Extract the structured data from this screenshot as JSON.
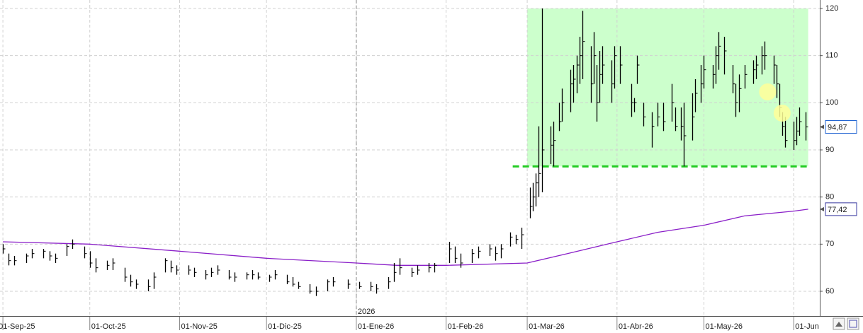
{
  "chart_data": {
    "type": "ohlc",
    "xlim": [
      "2025-08-31",
      "2026-06-10"
    ],
    "ylim": [
      54.75,
      121.8
    ],
    "yticks": [
      60,
      70,
      80,
      90,
      100,
      110,
      120
    ],
    "xticks": [
      {
        "value": "2025-09-01",
        "label": "01-Sep-25"
      },
      {
        "value": "2025-10-01",
        "label": "01-Oct-25"
      },
      {
        "value": "2025-11-01",
        "label": "01-Nov-25"
      },
      {
        "value": "2025-12-01",
        "label": "01-Dic-25"
      },
      {
        "value": "2026-01-01",
        "label": "01-Ene-26"
      },
      {
        "value": "2026-02-01",
        "label": "01-Feb-26"
      },
      {
        "value": "2026-03-01",
        "label": "01-Mar-26"
      },
      {
        "value": "2026-04-01",
        "label": "01-Abr-26"
      },
      {
        "value": "2026-05-01",
        "label": "01-May-26"
      },
      {
        "value": "2026-06-01",
        "label": "01-Jun"
      }
    ],
    "year_marker": {
      "value": "2026-01-01",
      "label": "2026"
    },
    "grid": true,
    "color": "#000000",
    "x": [
      "2025-09-01",
      "2025-09-03",
      "2025-09-05",
      "2025-09-09",
      "2025-09-11",
      "2025-09-15",
      "2025-09-17",
      "2025-09-19",
      "2025-09-23",
      "2025-09-25",
      "2025-09-29",
      "2025-10-01",
      "2025-10-03",
      "2025-10-07",
      "2025-10-09",
      "2025-10-13",
      "2025-10-15",
      "2025-10-17",
      "2025-10-21",
      "2025-10-23",
      "2025-10-27",
      "2025-10-29",
      "2025-10-31",
      "2025-11-04",
      "2025-11-06",
      "2025-11-10",
      "2025-11-12",
      "2025-11-14",
      "2025-11-18",
      "2025-11-20",
      "2025-11-24",
      "2025-11-26",
      "2025-11-28",
      "2025-12-02",
      "2025-12-04",
      "2025-12-08",
      "2025-12-10",
      "2025-12-12",
      "2025-12-16",
      "2025-12-18",
      "2025-12-22",
      "2025-12-24",
      "2025-12-29",
      "2026-01-02",
      "2026-01-06",
      "2026-01-08",
      "2026-01-12",
      "2026-01-14",
      "2026-01-16",
      "2026-01-20",
      "2026-01-22",
      "2026-01-26",
      "2026-01-28",
      "2026-02-02",
      "2026-02-04",
      "2026-02-06",
      "2026-02-10",
      "2026-02-12",
      "2026-02-16",
      "2026-02-18",
      "2026-02-20",
      "2026-02-23",
      "2026-02-25",
      "2026-02-27",
      "2026-03-02",
      "2026-03-03",
      "2026-03-04",
      "2026-03-05",
      "2026-03-06",
      "2026-03-09",
      "2026-03-10",
      "2026-03-12",
      "2026-03-13",
      "2026-03-16",
      "2026-03-17",
      "2026-03-18",
      "2026-03-19",
      "2026-03-20",
      "2026-03-23",
      "2026-03-24",
      "2026-03-25",
      "2026-03-26",
      "2026-03-27",
      "2026-03-30",
      "2026-03-31",
      "2026-04-02",
      "2026-04-06",
      "2026-04-07",
      "2026-04-08",
      "2026-04-10",
      "2026-04-13",
      "2026-04-15",
      "2026-04-17",
      "2026-04-20",
      "2026-04-21",
      "2026-04-23",
      "2026-04-24",
      "2026-04-27",
      "2026-04-28",
      "2026-04-30",
      "2026-05-01",
      "2026-05-04",
      "2026-05-05",
      "2026-05-06",
      "2026-05-08",
      "2026-05-11",
      "2026-05-12",
      "2026-05-13",
      "2026-05-15",
      "2026-05-18",
      "2026-05-19",
      "2026-05-21",
      "2026-05-22",
      "2026-05-25",
      "2026-05-26",
      "2026-05-27",
      "2026-05-28",
      "2026-05-29",
      "2026-06-01",
      "2026-06-02",
      "2026-06-03",
      "2026-06-05"
    ],
    "high": [
      70,
      68,
      67.5,
      68,
      69,
      69,
      68.5,
      68,
      70,
      71,
      69.5,
      68.5,
      67,
      66.5,
      67,
      65,
      63.5,
      62.5,
      62.5,
      64,
      67,
      66.5,
      65.5,
      65.5,
      65,
      64.5,
      65,
      65.5,
      64.5,
      64,
      64,
      64.5,
      64,
      63.5,
      64.5,
      63.5,
      63,
      62,
      61.5,
      61,
      62.5,
      63,
      62.5,
      62,
      62,
      61.5,
      63,
      66,
      67,
      65,
      65.5,
      66,
      66,
      70.5,
      69.5,
      68,
      69,
      69.5,
      70,
      69.5,
      70,
      72.5,
      72,
      73.5,
      82,
      83,
      85,
      95,
      120,
      95,
      96,
      100,
      103,
      107,
      108,
      110,
      114,
      119.5,
      112,
      115,
      108,
      111,
      112,
      109,
      112,
      112,
      104,
      101,
      110,
      100,
      98,
      100,
      100,
      104,
      99,
      99,
      100,
      102,
      105,
      108,
      110,
      108,
      112,
      115,
      114,
      108,
      104,
      106,
      108,
      109,
      110,
      112,
      113,
      110,
      108,
      104,
      98,
      97,
      96,
      97,
      99,
      98
    ],
    "low": [
      68,
      65.5,
      65.5,
      66,
      67,
      67,
      66.5,
      66,
      67.5,
      69,
      67,
      65,
      64,
      64.5,
      64.5,
      62,
      61,
      60.5,
      60,
      60.5,
      64,
      64,
      63.5,
      63.5,
      63,
      62.5,
      63,
      63.5,
      62.5,
      62,
      62.5,
      62.5,
      62.5,
      62,
      62.5,
      61.5,
      61,
      60.5,
      59.5,
      59,
      60,
      61,
      60.5,
      60.5,
      60,
      59.5,
      60.5,
      62,
      63.5,
      63,
      63.5,
      64,
      64,
      66,
      66,
      65,
      66,
      67,
      67.5,
      66.5,
      67,
      69.5,
      70,
      69,
      75.5,
      77,
      78,
      80,
      81,
      87,
      86.5,
      94,
      96,
      98,
      100,
      102,
      104,
      105,
      100,
      104,
      96,
      100,
      104,
      100,
      103,
      104,
      97,
      98,
      104,
      95,
      90.5,
      95,
      94,
      96,
      94,
      92,
      86.5,
      92,
      98,
      100,
      103,
      103,
      104,
      107,
      106,
      102,
      97,
      98,
      103,
      104,
      105,
      106,
      107,
      104,
      101,
      97,
      93,
      90.5,
      90,
      91,
      93,
      92
    ],
    "close": [
      69,
      66.5,
      66.5,
      67.5,
      68,
      68.5,
      67.5,
      67,
      69.5,
      70,
      68,
      66,
      65,
      65.5,
      66,
      63,
      62,
      61.5,
      61,
      63,
      66.5,
      65,
      64.5,
      64.5,
      64,
      63.5,
      64,
      64.5,
      63,
      63,
      63.5,
      63.5,
      63,
      63,
      63.5,
      62,
      61.5,
      61,
      60,
      60,
      62,
      62,
      61.5,
      61,
      61,
      60.5,
      62,
      64,
      65,
      64,
      64.5,
      65,
      65.5,
      69,
      67,
      66,
      68,
      68.5,
      69,
      68,
      69,
      71.5,
      71,
      72,
      78,
      80,
      83,
      85,
      90,
      91,
      92,
      96,
      100,
      104,
      105,
      108,
      110,
      113,
      104,
      110,
      100,
      106,
      108,
      104,
      110,
      108,
      100,
      100,
      108,
      97,
      95,
      97,
      96,
      100,
      95,
      95,
      93,
      97,
      102,
      104,
      107,
      106,
      110,
      112,
      111,
      104,
      100,
      103,
      106,
      107,
      108,
      110,
      110,
      108,
      104,
      99,
      95,
      92,
      92,
      94,
      96,
      94.87
    ],
    "moving_average": {
      "color": "#8a1fc8",
      "x": [
        "2025-09-01",
        "2025-10-01",
        "2025-11-01",
        "2025-12-01",
        "2026-01-01",
        "2026-01-15",
        "2026-02-01",
        "2026-03-01",
        "2026-03-15",
        "2026-04-01",
        "2026-04-15",
        "2026-05-01",
        "2026-05-15",
        "2026-06-01",
        "2026-06-06"
      ],
      "values": [
        70.5,
        70,
        68.5,
        67,
        66,
        65.5,
        65.5,
        66,
        68,
        70.5,
        72.5,
        74,
        76,
        77,
        77.42
      ]
    },
    "zone": {
      "color": "#ccffcc",
      "x": [
        "2026-03-01",
        "2026-06-06"
      ],
      "y": [
        86.5,
        120
      ]
    },
    "support": {
      "color": "#22cc22",
      "value": 86.5,
      "x": [
        "2026-02-24",
        "2026-06-06"
      ]
    },
    "highlights": {
      "color": "#ffff99",
      "x": [
        "2026-05-23",
        "2026-05-28"
      ],
      "values": [
        102.3,
        97.8
      ]
    },
    "last_price": {
      "value": 94.87,
      "label": "94,87"
    },
    "ma_last": {
      "value": 77.42,
      "label": "77,42"
    }
  }
}
